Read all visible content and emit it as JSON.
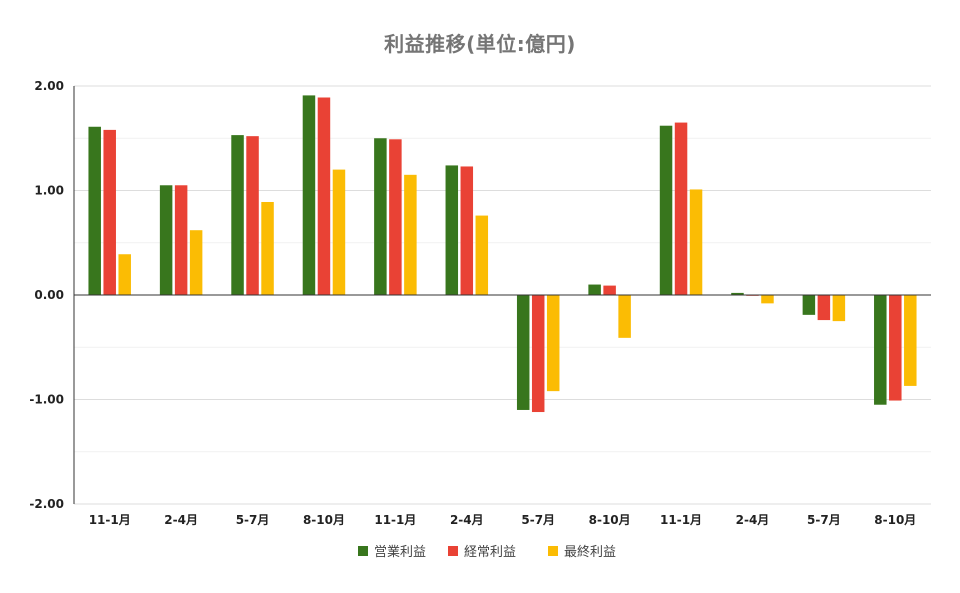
{
  "chart_data": {
    "type": "bar",
    "title": "利益推移(単位:億円)",
    "xlabel": "",
    "ylabel": "",
    "ylim": [
      -2,
      2
    ],
    "yticks": [
      2,
      1,
      0,
      -1,
      -2
    ],
    "ytick_labels": [
      "2.00",
      "1.00",
      "0.00",
      "-1.00",
      "-2.00"
    ],
    "categories": [
      "11-1月",
      "2-4月",
      "5-7月",
      "8-10月",
      "11-1月",
      "2-4月",
      "5-7月",
      "8-10月",
      "11-1月",
      "2-4月",
      "5-7月",
      "8-10月"
    ],
    "series": [
      {
        "name": "営業利益",
        "color": "#38761d",
        "values": [
          1.61,
          1.05,
          1.53,
          1.91,
          1.5,
          1.24,
          -1.1,
          0.1,
          1.62,
          0.02,
          -0.19,
          -1.05
        ]
      },
      {
        "name": "経常利益",
        "color": "#e94235",
        "values": [
          1.58,
          1.05,
          1.52,
          1.89,
          1.49,
          1.23,
          -1.12,
          0.09,
          1.65,
          0.0,
          -0.24,
          -1.01
        ]
      },
      {
        "name": "最終利益",
        "color": "#fbbc04",
        "values": [
          0.39,
          0.62,
          0.89,
          1.2,
          1.15,
          0.76,
          -0.92,
          -0.41,
          1.01,
          -0.08,
          -0.25,
          -0.87
        ]
      }
    ],
    "grid": true,
    "minor_grid": true,
    "legend": "bottom"
  }
}
